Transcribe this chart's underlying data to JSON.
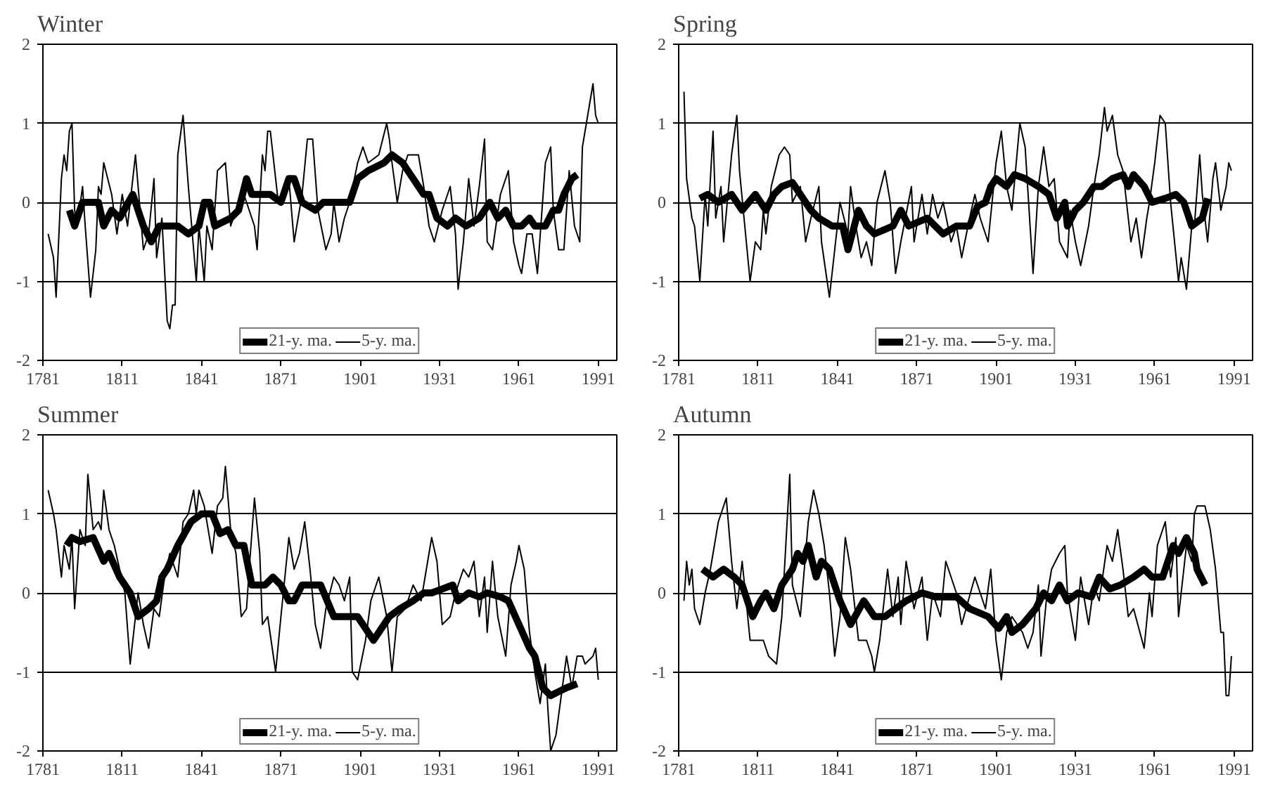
{
  "chart_data": [
    {
      "type": "line",
      "title": "Winter",
      "xlim": [
        1781,
        1998
      ],
      "ylim": [
        -2,
        2
      ],
      "xticks": [
        1781,
        1811,
        1841,
        1871,
        1901,
        1931,
        1961,
        1991
      ],
      "yticks": [
        -2,
        -1,
        0,
        1,
        2
      ],
      "grid": "y",
      "legend": "bottom",
      "series": [
        {
          "name": "21-y. ma.",
          "color": "#000000",
          "x": [
            1791,
            1793,
            1796,
            1802,
            1804,
            1807,
            1810,
            1815,
            1819,
            1822,
            1825,
            1832,
            1836,
            1840,
            1842,
            1844,
            1846,
            1852,
            1855,
            1858,
            1860,
            1867,
            1871,
            1874,
            1876,
            1879,
            1884,
            1887,
            1894,
            1897,
            1900,
            1904,
            1910,
            1913,
            1917,
            1921,
            1925,
            1927,
            1930,
            1934,
            1937,
            1941,
            1946,
            1950,
            1953,
            1956,
            1959,
            1962,
            1965,
            1967,
            1971,
            1974,
            1976,
            1978,
            1981,
            1983
          ],
          "values": [
            -0.1,
            -0.3,
            0.0,
            0.0,
            -0.3,
            -0.1,
            -0.2,
            0.1,
            -0.3,
            -0.5,
            -0.3,
            -0.3,
            -0.4,
            -0.3,
            0.0,
            0.0,
            -0.3,
            -0.2,
            -0.1,
            0.3,
            0.1,
            0.1,
            0.0,
            0.3,
            0.3,
            0.0,
            -0.1,
            0.0,
            0.0,
            0.0,
            0.3,
            0.4,
            0.5,
            0.6,
            0.5,
            0.3,
            0.1,
            0.1,
            -0.2,
            -0.3,
            -0.2,
            -0.3,
            -0.2,
            0.0,
            -0.2,
            -0.1,
            -0.3,
            -0.3,
            -0.2,
            -0.3,
            -0.3,
            -0.1,
            -0.1,
            0.1,
            0.3,
            0.35
          ]
        },
        {
          "name": "5-y. ma.",
          "color": "#000000",
          "x": [
            1783,
            1785,
            1786,
            1788,
            1789,
            1790,
            1791,
            1792,
            1793,
            1794,
            1796,
            1797,
            1799,
            1801,
            1802,
            1803,
            1804,
            1807,
            1809,
            1811,
            1813,
            1816,
            1819,
            1821,
            1823,
            1824,
            1826,
            1828,
            1829,
            1830,
            1831,
            1832,
            1834,
            1836,
            1838,
            1839,
            1840,
            1842,
            1843,
            1845,
            1847,
            1850,
            1852,
            1854,
            1857,
            1861,
            1862,
            1864,
            1865,
            1866,
            1867,
            1870,
            1874,
            1876,
            1879,
            1881,
            1883,
            1885,
            1888,
            1890,
            1891,
            1893,
            1895,
            1897,
            1900,
            1902,
            1904,
            1908,
            1911,
            1912,
            1913,
            1915,
            1917,
            1919,
            1923,
            1925,
            1927,
            1929,
            1932,
            1935,
            1937,
            1938,
            1940,
            1942,
            1944,
            1946,
            1948,
            1949,
            1951,
            1954,
            1957,
            1959,
            1961,
            1962,
            1964,
            1966,
            1968,
            1971,
            1973,
            1974,
            1976,
            1978,
            1980,
            1982,
            1984,
            1985,
            1987,
            1989,
            1990,
            1991
          ],
          "values": [
            -0.4,
            -0.7,
            -1.2,
            0.3,
            0.6,
            0.4,
            0.9,
            1.0,
            -0.1,
            -0.3,
            0.2,
            -0.3,
            -1.2,
            -0.6,
            0.2,
            0.1,
            0.5,
            0.1,
            -0.4,
            0.1,
            -0.3,
            0.6,
            -0.6,
            -0.4,
            0.3,
            -0.7,
            -0.2,
            -1.5,
            -1.6,
            -1.3,
            -1.3,
            0.6,
            1.1,
            0.2,
            -0.6,
            -1.0,
            -0.3,
            -1.0,
            -0.3,
            -0.6,
            0.4,
            0.5,
            -0.3,
            -0.1,
            0.1,
            -0.3,
            -0.6,
            0.6,
            0.4,
            0.9,
            0.9,
            0.0,
            0.3,
            -0.5,
            0.1,
            0.8,
            0.8,
            -0.1,
            -0.6,
            -0.4,
            0.0,
            -0.5,
            -0.2,
            0.0,
            0.5,
            0.7,
            0.5,
            0.6,
            1.0,
            0.8,
            0.5,
            0.0,
            0.4,
            0.6,
            0.6,
            0.2,
            -0.3,
            -0.5,
            -0.1,
            0.2,
            -0.4,
            -1.1,
            -0.5,
            0.3,
            -0.3,
            0.2,
            0.8,
            -0.5,
            -0.6,
            0.1,
            0.4,
            -0.5,
            -0.8,
            -0.9,
            -0.4,
            -0.4,
            -0.9,
            0.5,
            0.7,
            -0.1,
            -0.6,
            -0.6,
            0.4,
            -0.3,
            -0.5,
            0.7,
            1.1,
            1.5,
            1.1,
            1.0
          ]
        }
      ]
    },
    {
      "type": "line",
      "title": "Spring",
      "xlim": [
        1781,
        1998
      ],
      "ylim": [
        -2,
        2
      ],
      "xticks": [
        1781,
        1811,
        1841,
        1871,
        1901,
        1931,
        1961,
        1991
      ],
      "yticks": [
        -2,
        -1,
        0,
        1,
        2
      ],
      "grid": "y",
      "legend": "bottom",
      "series": [
        {
          "name": "21-y. ma.",
          "color": "#000000",
          "x": [
            1789,
            1792,
            1796,
            1801,
            1805,
            1810,
            1814,
            1817,
            1820,
            1824,
            1827,
            1831,
            1834,
            1839,
            1843,
            1845,
            1849,
            1852,
            1855,
            1862,
            1865,
            1868,
            1875,
            1878,
            1881,
            1886,
            1891,
            1894,
            1897,
            1899,
            1901,
            1905,
            1908,
            1912,
            1917,
            1921,
            1924,
            1927,
            1928,
            1931,
            1934,
            1938,
            1941,
            1945,
            1949,
            1951,
            1953,
            1957,
            1960,
            1965,
            1969,
            1972,
            1975,
            1979,
            1981
          ],
          "values": [
            0.05,
            0.1,
            0.0,
            0.1,
            -0.1,
            0.1,
            -0.1,
            0.1,
            0.2,
            0.25,
            0.1,
            -0.1,
            -0.2,
            -0.3,
            -0.3,
            -0.6,
            -0.1,
            -0.3,
            -0.4,
            -0.3,
            -0.1,
            -0.3,
            -0.2,
            -0.3,
            -0.4,
            -0.3,
            -0.3,
            -0.05,
            0.0,
            0.2,
            0.3,
            0.2,
            0.35,
            0.3,
            0.2,
            0.1,
            -0.2,
            0.0,
            -0.3,
            -0.1,
            0.0,
            0.2,
            0.2,
            0.3,
            0.35,
            0.2,
            0.35,
            0.2,
            0.0,
            0.05,
            0.1,
            0.0,
            -0.3,
            -0.2,
            0.05
          ]
        },
        {
          "name": "5-y. ma.",
          "color": "#000000",
          "x": [
            1783,
            1784,
            1786,
            1787,
            1789,
            1791,
            1792,
            1794,
            1795,
            1797,
            1798,
            1801,
            1803,
            1804,
            1806,
            1808,
            1810,
            1812,
            1813,
            1814,
            1816,
            1819,
            1821,
            1823,
            1824,
            1827,
            1829,
            1831,
            1834,
            1835,
            1838,
            1840,
            1842,
            1845,
            1846,
            1848,
            1850,
            1852,
            1854,
            1856,
            1859,
            1861,
            1863,
            1865,
            1869,
            1870,
            1873,
            1875,
            1877,
            1879,
            1881,
            1884,
            1886,
            1888,
            1891,
            1893,
            1895,
            1897,
            1898,
            1901,
            1903,
            1905,
            1907,
            1910,
            1912,
            1915,
            1917,
            1919,
            1921,
            1923,
            1925,
            1928,
            1929,
            1931,
            1933,
            1936,
            1938,
            1940,
            1942,
            1943,
            1945,
            1947,
            1949,
            1950,
            1952,
            1954,
            1956,
            1958,
            1959,
            1961,
            1963,
            1965,
            1967,
            1970,
            1971,
            1973,
            1975,
            1976,
            1978,
            1979,
            1981,
            1983,
            1984,
            1986,
            1988,
            1989,
            1990
          ],
          "values": [
            1.4,
            0.3,
            -0.2,
            -0.3,
            -1.0,
            0.1,
            -0.3,
            0.9,
            -0.2,
            0.2,
            -0.5,
            0.6,
            1.1,
            0.4,
            -0.3,
            -1.0,
            -0.5,
            -0.6,
            -0.1,
            -0.4,
            0.2,
            0.6,
            0.7,
            0.6,
            0.0,
            0.2,
            -0.5,
            -0.2,
            0.2,
            -0.5,
            -1.2,
            -0.6,
            0.0,
            -0.4,
            0.2,
            -0.3,
            -0.7,
            -0.5,
            -0.8,
            0.0,
            0.4,
            0.0,
            -0.9,
            -0.5,
            0.2,
            -0.5,
            0.1,
            -0.4,
            0.1,
            -0.2,
            0.0,
            -0.5,
            -0.3,
            -0.7,
            -0.2,
            0.1,
            -0.2,
            -0.4,
            -0.5,
            0.5,
            0.9,
            0.2,
            -0.1,
            1.0,
            0.7,
            -0.9,
            0.2,
            0.7,
            0.2,
            0.3,
            -0.5,
            -0.7,
            -0.1,
            -0.5,
            -0.8,
            -0.3,
            0.2,
            0.6,
            1.2,
            0.9,
            1.1,
            0.6,
            0.4,
            0.1,
            -0.5,
            -0.2,
            -0.7,
            -0.2,
            0.0,
            0.5,
            1.1,
            1.0,
            0.0,
            -1.0,
            -0.7,
            -1.1,
            -0.3,
            -0.3,
            0.6,
            0.1,
            -0.5,
            0.3,
            0.5,
            -0.1,
            0.2,
            0.5,
            0.4
          ]
        }
      ]
    },
    {
      "type": "line",
      "title": "Summer",
      "xlim": [
        1781,
        1998
      ],
      "ylim": [
        -2,
        2
      ],
      "xticks": [
        1781,
        1811,
        1841,
        1871,
        1901,
        1931,
        1961,
        1991
      ],
      "yticks": [
        -2,
        -1,
        0,
        1,
        2
      ],
      "grid": "y",
      "legend": "bottom",
      "series": [
        {
          "name": "21-y. ma.",
          "color": "#000000",
          "x": [
            1790,
            1792,
            1795,
            1800,
            1804,
            1806,
            1810,
            1814,
            1817,
            1821,
            1824,
            1826,
            1828,
            1832,
            1837,
            1841,
            1845,
            1848,
            1851,
            1854,
            1857,
            1860,
            1865,
            1868,
            1871,
            1874,
            1876,
            1879,
            1886,
            1891,
            1895,
            1900,
            1904,
            1906,
            1912,
            1916,
            1921,
            1925,
            1928,
            1932,
            1936,
            1938,
            1942,
            1946,
            1949,
            1954,
            1957,
            1961,
            1965,
            1967,
            1970,
            1973,
            1976,
            1979,
            1983
          ],
          "values": [
            0.6,
            0.7,
            0.65,
            0.7,
            0.4,
            0.5,
            0.2,
            0.0,
            -0.3,
            -0.2,
            -0.1,
            0.2,
            0.3,
            0.6,
            0.9,
            1.0,
            1.0,
            0.75,
            0.8,
            0.6,
            0.6,
            0.1,
            0.1,
            0.2,
            0.1,
            -0.1,
            -0.1,
            0.1,
            0.1,
            -0.3,
            -0.3,
            -0.3,
            -0.5,
            -0.6,
            -0.3,
            -0.2,
            -0.1,
            0.0,
            0.0,
            0.05,
            0.1,
            -0.1,
            0.0,
            -0.05,
            0.0,
            -0.05,
            -0.1,
            -0.4,
            -0.7,
            -0.8,
            -1.2,
            -1.3,
            -1.25,
            -1.2,
            -1.15
          ]
        },
        {
          "name": "5-y. ma.",
          "color": "#000000",
          "x": [
            1783,
            1785,
            1786,
            1788,
            1789,
            1791,
            1792,
            1793,
            1795,
            1797,
            1798,
            1800,
            1802,
            1803,
            1804,
            1806,
            1808,
            1810,
            1812,
            1814,
            1816,
            1817,
            1819,
            1821,
            1823,
            1825,
            1827,
            1829,
            1832,
            1834,
            1836,
            1838,
            1839,
            1840,
            1842,
            1845,
            1847,
            1849,
            1850,
            1852,
            1854,
            1856,
            1858,
            1859,
            1861,
            1863,
            1864,
            1866,
            1869,
            1871,
            1874,
            1876,
            1878,
            1880,
            1882,
            1884,
            1886,
            1888,
            1891,
            1893,
            1895,
            1897,
            1898,
            1900,
            1903,
            1905,
            1908,
            1911,
            1913,
            1915,
            1918,
            1921,
            1924,
            1926,
            1928,
            1930,
            1932,
            1935,
            1937,
            1940,
            1942,
            1944,
            1946,
            1948,
            1949,
            1951,
            1953,
            1956,
            1958,
            1960,
            1961,
            1963,
            1965,
            1967,
            1969,
            1971,
            1972,
            1973,
            1975,
            1977,
            1979,
            1981,
            1983,
            1985,
            1986,
            1989,
            1990,
            1991
          ],
          "values": [
            1.3,
            1.0,
            0.8,
            0.2,
            0.6,
            0.3,
            0.7,
            -0.2,
            0.8,
            0.6,
            1.5,
            0.8,
            0.9,
            0.8,
            1.3,
            0.8,
            0.6,
            0.3,
            0.0,
            -0.9,
            -0.3,
            0.0,
            -0.4,
            -0.7,
            -0.2,
            -0.3,
            0.2,
            0.5,
            0.2,
            0.9,
            1.0,
            1.3,
            1.0,
            1.3,
            1.1,
            0.5,
            1.1,
            1.2,
            1.6,
            0.8,
            0.5,
            -0.3,
            -0.2,
            0.3,
            1.2,
            0.5,
            -0.4,
            -0.3,
            -1.0,
            -0.3,
            0.7,
            0.3,
            0.5,
            0.9,
            0.3,
            -0.4,
            -0.7,
            -0.2,
            0.2,
            0.1,
            -0.1,
            0.2,
            -1.0,
            -1.1,
            -0.6,
            -0.1,
            0.2,
            -0.3,
            -1.0,
            -0.3,
            -0.2,
            0.1,
            -0.1,
            0.3,
            0.7,
            0.4,
            -0.4,
            -0.3,
            0.0,
            0.3,
            0.2,
            0.4,
            -0.3,
            0.2,
            -0.5,
            0.4,
            -0.3,
            -0.8,
            0.1,
            0.4,
            0.6,
            0.3,
            -0.5,
            -1.0,
            -1.4,
            -0.9,
            -1.5,
            -2.0,
            -1.8,
            -1.3,
            -0.8,
            -1.2,
            -0.8,
            -0.8,
            -0.9,
            -0.8,
            -0.7,
            -1.1
          ]
        }
      ]
    },
    {
      "type": "line",
      "title": "Autumn",
      "xlim": [
        1781,
        1998
      ],
      "ylim": [
        -2,
        2
      ],
      "xticks": [
        1781,
        1811,
        1841,
        1871,
        1901,
        1931,
        1961,
        1991
      ],
      "yticks": [
        -2,
        -1,
        0,
        1,
        2
      ],
      "grid": "y",
      "legend": "bottom",
      "series": [
        {
          "name": "21-y. ma.",
          "color": "#000000",
          "x": [
            1790,
            1794,
            1798,
            1802,
            1805,
            1809,
            1812,
            1814,
            1817,
            1820,
            1824,
            1826,
            1828,
            1830,
            1833,
            1835,
            1838,
            1842,
            1846,
            1851,
            1855,
            1859,
            1863,
            1867,
            1873,
            1878,
            1886,
            1891,
            1898,
            1902,
            1905,
            1907,
            1911,
            1916,
            1919,
            1922,
            1925,
            1928,
            1932,
            1937,
            1940,
            1944,
            1948,
            1953,
            1957,
            1960,
            1964,
            1968,
            1970,
            1973,
            1976,
            1977,
            1980
          ],
          "values": [
            0.3,
            0.2,
            0.3,
            0.2,
            0.1,
            -0.3,
            -0.1,
            0.0,
            -0.2,
            0.1,
            0.3,
            0.5,
            0.4,
            0.6,
            0.2,
            0.4,
            0.3,
            -0.1,
            -0.4,
            -0.1,
            -0.3,
            -0.3,
            -0.2,
            -0.1,
            0.0,
            -0.05,
            -0.05,
            -0.2,
            -0.3,
            -0.45,
            -0.3,
            -0.5,
            -0.4,
            -0.2,
            0.0,
            -0.1,
            0.1,
            -0.1,
            0.0,
            -0.05,
            0.2,
            0.05,
            0.1,
            0.2,
            0.3,
            0.2,
            0.2,
            0.6,
            0.5,
            0.7,
            0.5,
            0.3,
            0.1
          ]
        },
        {
          "name": "5-y. ma.",
          "color": "#000000",
          "x": [
            1783,
            1784,
            1785,
            1786,
            1787,
            1789,
            1791,
            1793,
            1796,
            1799,
            1801,
            1803,
            1805,
            1808,
            1811,
            1813,
            1815,
            1818,
            1820,
            1823,
            1824,
            1827,
            1830,
            1832,
            1834,
            1836,
            1838,
            1840,
            1842,
            1844,
            1846,
            1849,
            1852,
            1854,
            1855,
            1857,
            1860,
            1862,
            1864,
            1865,
            1867,
            1870,
            1873,
            1875,
            1877,
            1880,
            1882,
            1886,
            1888,
            1893,
            1897,
            1899,
            1901,
            1903,
            1905,
            1907,
            1911,
            1913,
            1915,
            1917,
            1918,
            1920,
            1922,
            1925,
            1927,
            1928,
            1931,
            1933,
            1936,
            1938,
            1940,
            1943,
            1945,
            1947,
            1949,
            1951,
            1953,
            1957,
            1959,
            1960,
            1962,
            1965,
            1967,
            1969,
            1970,
            1973,
            1975,
            1976,
            1977,
            1980,
            1982,
            1984,
            1986,
            1987,
            1988,
            1989,
            1990
          ],
          "values": [
            -0.1,
            0.4,
            0.1,
            0.3,
            -0.2,
            -0.4,
            0.0,
            0.3,
            0.9,
            1.2,
            0.4,
            -0.2,
            0.4,
            -0.6,
            -0.6,
            -0.6,
            -0.8,
            -0.9,
            -0.3,
            1.5,
            0.1,
            -0.3,
            0.9,
            1.3,
            1.0,
            0.6,
            0.0,
            -0.8,
            -0.3,
            0.7,
            0.3,
            -0.6,
            -0.6,
            -0.8,
            -1.0,
            -0.6,
            0.3,
            -0.3,
            0.2,
            -0.4,
            0.4,
            -0.2,
            0.2,
            -0.6,
            0.0,
            -0.3,
            0.4,
            0.0,
            -0.4,
            0.2,
            -0.2,
            0.3,
            -0.6,
            -1.1,
            -0.5,
            -0.3,
            -0.5,
            -0.7,
            -0.5,
            0.1,
            -0.8,
            -0.1,
            0.3,
            0.5,
            0.6,
            0.0,
            -0.6,
            0.2,
            -0.4,
            0.1,
            -0.1,
            0.6,
            0.4,
            0.8,
            0.3,
            -0.3,
            -0.2,
            -0.7,
            0.0,
            -0.3,
            0.6,
            0.9,
            0.2,
            0.7,
            -0.3,
            0.6,
            0.4,
            1.0,
            1.1,
            1.1,
            0.8,
            0.3,
            -0.5,
            -0.5,
            -1.3,
            -1.3,
            -0.8
          ]
        }
      ]
    }
  ]
}
